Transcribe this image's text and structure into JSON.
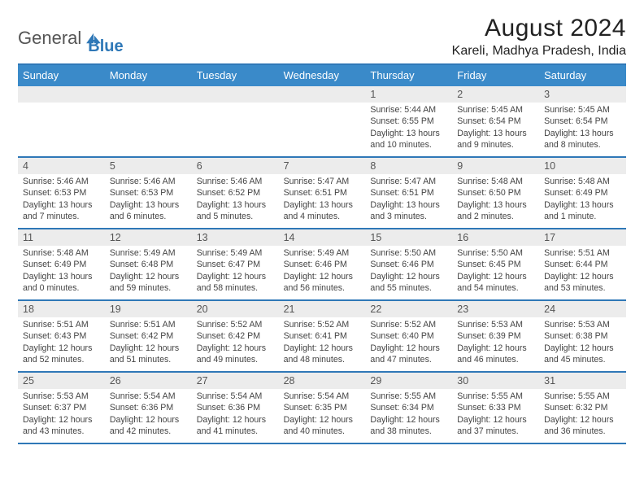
{
  "logo": {
    "part1": "General",
    "part2": "Blue"
  },
  "title": "August 2024",
  "subtitle": "Kareli, Madhya Pradesh, India",
  "colors": {
    "header_bg": "#3a8ac9",
    "border": "#2f78b7",
    "daynum_bg": "#ececec",
    "text": "#333333",
    "white": "#ffffff"
  },
  "weekdays": [
    "Sunday",
    "Monday",
    "Tuesday",
    "Wednesday",
    "Thursday",
    "Friday",
    "Saturday"
  ],
  "weeks": [
    [
      {
        "blank": true
      },
      {
        "blank": true
      },
      {
        "blank": true
      },
      {
        "blank": true
      },
      {
        "num": "1",
        "sunrise": "5:44 AM",
        "sunset": "6:55 PM",
        "daylight": "13 hours and 10 minutes."
      },
      {
        "num": "2",
        "sunrise": "5:45 AM",
        "sunset": "6:54 PM",
        "daylight": "13 hours and 9 minutes."
      },
      {
        "num": "3",
        "sunrise": "5:45 AM",
        "sunset": "6:54 PM",
        "daylight": "13 hours and 8 minutes."
      }
    ],
    [
      {
        "num": "4",
        "sunrise": "5:46 AM",
        "sunset": "6:53 PM",
        "daylight": "13 hours and 7 minutes."
      },
      {
        "num": "5",
        "sunrise": "5:46 AM",
        "sunset": "6:53 PM",
        "daylight": "13 hours and 6 minutes."
      },
      {
        "num": "6",
        "sunrise": "5:46 AM",
        "sunset": "6:52 PM",
        "daylight": "13 hours and 5 minutes."
      },
      {
        "num": "7",
        "sunrise": "5:47 AM",
        "sunset": "6:51 PM",
        "daylight": "13 hours and 4 minutes."
      },
      {
        "num": "8",
        "sunrise": "5:47 AM",
        "sunset": "6:51 PM",
        "daylight": "13 hours and 3 minutes."
      },
      {
        "num": "9",
        "sunrise": "5:48 AM",
        "sunset": "6:50 PM",
        "daylight": "13 hours and 2 minutes."
      },
      {
        "num": "10",
        "sunrise": "5:48 AM",
        "sunset": "6:49 PM",
        "daylight": "13 hours and 1 minute."
      }
    ],
    [
      {
        "num": "11",
        "sunrise": "5:48 AM",
        "sunset": "6:49 PM",
        "daylight": "13 hours and 0 minutes."
      },
      {
        "num": "12",
        "sunrise": "5:49 AM",
        "sunset": "6:48 PM",
        "daylight": "12 hours and 59 minutes."
      },
      {
        "num": "13",
        "sunrise": "5:49 AM",
        "sunset": "6:47 PM",
        "daylight": "12 hours and 58 minutes."
      },
      {
        "num": "14",
        "sunrise": "5:49 AM",
        "sunset": "6:46 PM",
        "daylight": "12 hours and 56 minutes."
      },
      {
        "num": "15",
        "sunrise": "5:50 AM",
        "sunset": "6:46 PM",
        "daylight": "12 hours and 55 minutes."
      },
      {
        "num": "16",
        "sunrise": "5:50 AM",
        "sunset": "6:45 PM",
        "daylight": "12 hours and 54 minutes."
      },
      {
        "num": "17",
        "sunrise": "5:51 AM",
        "sunset": "6:44 PM",
        "daylight": "12 hours and 53 minutes."
      }
    ],
    [
      {
        "num": "18",
        "sunrise": "5:51 AM",
        "sunset": "6:43 PM",
        "daylight": "12 hours and 52 minutes."
      },
      {
        "num": "19",
        "sunrise": "5:51 AM",
        "sunset": "6:42 PM",
        "daylight": "12 hours and 51 minutes."
      },
      {
        "num": "20",
        "sunrise": "5:52 AM",
        "sunset": "6:42 PM",
        "daylight": "12 hours and 49 minutes."
      },
      {
        "num": "21",
        "sunrise": "5:52 AM",
        "sunset": "6:41 PM",
        "daylight": "12 hours and 48 minutes."
      },
      {
        "num": "22",
        "sunrise": "5:52 AM",
        "sunset": "6:40 PM",
        "daylight": "12 hours and 47 minutes."
      },
      {
        "num": "23",
        "sunrise": "5:53 AM",
        "sunset": "6:39 PM",
        "daylight": "12 hours and 46 minutes."
      },
      {
        "num": "24",
        "sunrise": "5:53 AM",
        "sunset": "6:38 PM",
        "daylight": "12 hours and 45 minutes."
      }
    ],
    [
      {
        "num": "25",
        "sunrise": "5:53 AM",
        "sunset": "6:37 PM",
        "daylight": "12 hours and 43 minutes."
      },
      {
        "num": "26",
        "sunrise": "5:54 AM",
        "sunset": "6:36 PM",
        "daylight": "12 hours and 42 minutes."
      },
      {
        "num": "27",
        "sunrise": "5:54 AM",
        "sunset": "6:36 PM",
        "daylight": "12 hours and 41 minutes."
      },
      {
        "num": "28",
        "sunrise": "5:54 AM",
        "sunset": "6:35 PM",
        "daylight": "12 hours and 40 minutes."
      },
      {
        "num": "29",
        "sunrise": "5:55 AM",
        "sunset": "6:34 PM",
        "daylight": "12 hours and 38 minutes."
      },
      {
        "num": "30",
        "sunrise": "5:55 AM",
        "sunset": "6:33 PM",
        "daylight": "12 hours and 37 minutes."
      },
      {
        "num": "31",
        "sunrise": "5:55 AM",
        "sunset": "6:32 PM",
        "daylight": "12 hours and 36 minutes."
      }
    ]
  ],
  "labels": {
    "sunrise": "Sunrise:",
    "sunset": "Sunset:",
    "daylight": "Daylight:"
  }
}
